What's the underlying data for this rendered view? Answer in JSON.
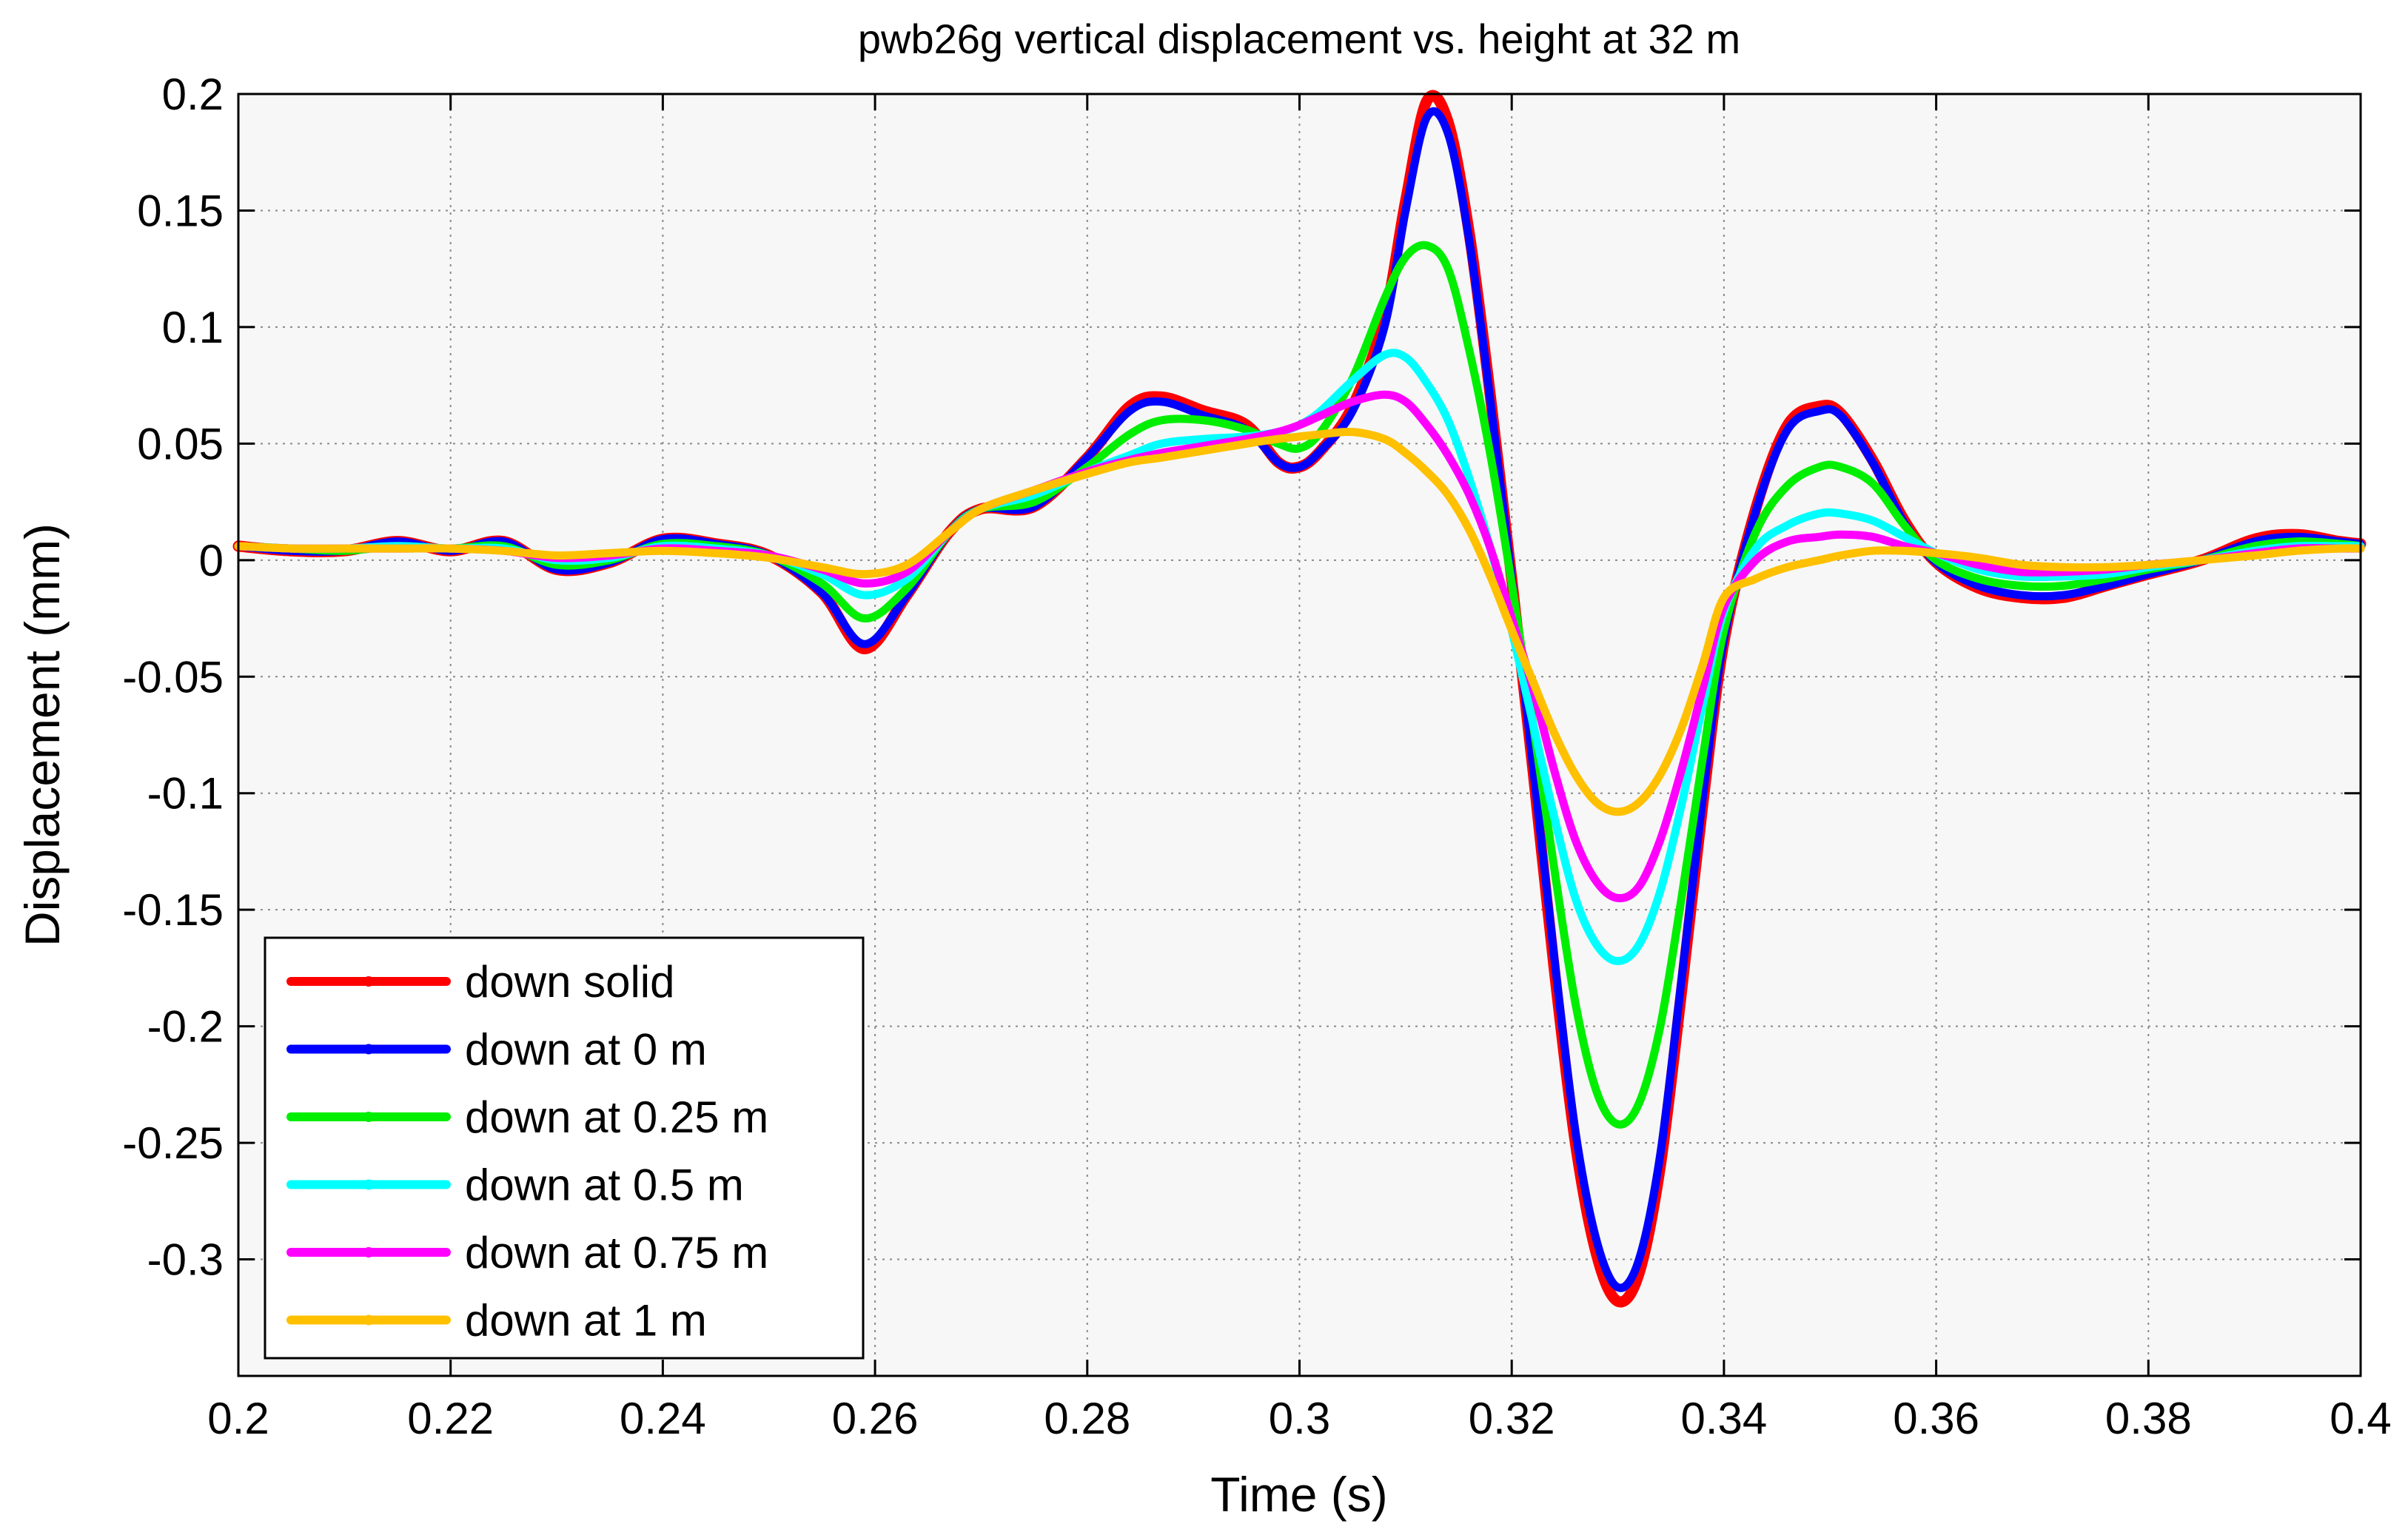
{
  "chart_data": {
    "type": "line",
    "title": "pwb26g vertical displacement vs. height at 32 m",
    "xlabel": "Time (s)",
    "ylabel": "Displacement (mm)",
    "xlim": [
      0.2,
      0.4
    ],
    "ylim": [
      -0.35,
      0.2
    ],
    "grid": true,
    "legend_position": "bottom-left",
    "background_color": "#f7f7f7",
    "x_ticks": [
      0.2,
      0.22,
      0.24,
      0.26,
      0.28,
      0.3,
      0.32,
      0.34,
      0.36,
      0.38,
      0.4
    ],
    "x_tick_labels": [
      "0.2",
      "0.22",
      "0.24",
      "0.26",
      "0.28",
      "0.3",
      "0.32",
      "0.34",
      "0.36",
      "0.38",
      "0.4"
    ],
    "y_ticks": [
      0.2,
      0.15,
      0.1,
      0.05,
      0,
      -0.05,
      -0.1,
      -0.15,
      -0.2,
      -0.25,
      -0.3
    ],
    "y_tick_labels": [
      "0.2",
      "0.15",
      "0.1",
      "0.05",
      "0",
      "-0.05",
      "-0.1",
      "-0.15",
      "-0.2",
      "-0.25",
      "-0.3"
    ],
    "x": [
      0.2,
      0.205,
      0.21,
      0.215,
      0.22,
      0.225,
      0.23,
      0.235,
      0.24,
      0.245,
      0.25,
      0.255,
      0.259,
      0.263,
      0.267,
      0.27,
      0.275,
      0.28,
      0.284,
      0.287,
      0.291,
      0.295,
      0.298,
      0.3,
      0.302,
      0.305,
      0.308,
      0.31,
      0.312,
      0.314,
      0.316,
      0.318,
      0.32,
      0.322,
      0.324,
      0.326,
      0.328,
      0.33,
      0.332,
      0.334,
      0.336,
      0.338,
      0.34,
      0.343,
      0.346,
      0.349,
      0.351,
      0.354,
      0.357,
      0.36,
      0.364,
      0.368,
      0.372,
      0.376,
      0.38,
      0.385,
      0.39,
      0.394,
      0.398,
      0.4
    ],
    "series": [
      {
        "name": "down solid",
        "color": "#ff0000",
        "values": [
          0.006,
          0.004,
          0.004,
          0.008,
          0.004,
          0.008,
          -0.004,
          -0.001,
          0.009,
          0.007,
          0.002,
          -0.014,
          -0.038,
          -0.015,
          0.012,
          0.022,
          0.023,
          0.044,
          0.066,
          0.07,
          0.064,
          0.058,
          0.042,
          0.04,
          0.047,
          0.066,
          0.104,
          0.154,
          0.197,
          0.188,
          0.14,
          0.07,
          -0.008,
          -0.09,
          -0.175,
          -0.25,
          -0.298,
          -0.318,
          -0.306,
          -0.26,
          -0.185,
          -0.105,
          -0.035,
          0.022,
          0.058,
          0.066,
          0.063,
          0.043,
          0.017,
          -0.001,
          -0.012,
          -0.016,
          -0.016,
          -0.011,
          -0.006,
          0.0,
          0.009,
          0.011,
          0.008,
          0.007
        ]
      },
      {
        "name": "down at 0 m",
        "color": "#0000ff",
        "values": [
          0.006,
          0.004,
          0.004,
          0.008,
          0.004,
          0.008,
          -0.004,
          -0.001,
          0.009,
          0.007,
          0.002,
          -0.014,
          -0.036,
          -0.015,
          0.012,
          0.022,
          0.023,
          0.044,
          0.064,
          0.068,
          0.062,
          0.056,
          0.042,
          0.04,
          0.047,
          0.064,
          0.1,
          0.15,
          0.19,
          0.183,
          0.137,
          0.068,
          -0.008,
          -0.088,
          -0.17,
          -0.245,
          -0.292,
          -0.312,
          -0.3,
          -0.255,
          -0.18,
          -0.102,
          -0.034,
          0.021,
          0.056,
          0.064,
          0.062,
          0.042,
          0.016,
          -0.001,
          -0.011,
          -0.015,
          -0.015,
          -0.011,
          -0.006,
          0.0,
          0.008,
          0.01,
          0.008,
          0.007
        ]
      },
      {
        "name": "down at 0.25 m",
        "color": "#00ee00",
        "values": [
          0.006,
          0.005,
          0.004,
          0.006,
          0.005,
          0.006,
          -0.002,
          0.0,
          0.007,
          0.006,
          0.002,
          -0.01,
          -0.025,
          -0.012,
          0.012,
          0.022,
          0.025,
          0.04,
          0.054,
          0.06,
          0.06,
          0.056,
          0.05,
          0.048,
          0.055,
          0.078,
          0.112,
          0.13,
          0.135,
          0.125,
          0.09,
          0.045,
          -0.01,
          -0.07,
          -0.132,
          -0.19,
          -0.228,
          -0.242,
          -0.233,
          -0.2,
          -0.145,
          -0.085,
          -0.03,
          0.012,
          0.032,
          0.04,
          0.04,
          0.033,
          0.015,
          0.0,
          -0.008,
          -0.011,
          -0.011,
          -0.008,
          -0.004,
          0.0,
          0.006,
          0.008,
          0.007,
          0.006
        ]
      },
      {
        "name": "down at 0.5 m",
        "color": "#00ffff",
        "values": [
          0.006,
          0.005,
          0.005,
          0.006,
          0.005,
          0.005,
          0.0,
          0.001,
          0.006,
          0.005,
          0.002,
          -0.006,
          -0.015,
          -0.008,
          0.012,
          0.022,
          0.028,
          0.038,
          0.045,
          0.05,
          0.052,
          0.053,
          0.055,
          0.058,
          0.064,
          0.077,
          0.088,
          0.087,
          0.076,
          0.06,
          0.035,
          0.005,
          -0.03,
          -0.07,
          -0.11,
          -0.145,
          -0.165,
          -0.172,
          -0.165,
          -0.142,
          -0.105,
          -0.062,
          -0.022,
          0.005,
          0.015,
          0.02,
          0.02,
          0.017,
          0.01,
          0.003,
          -0.004,
          -0.007,
          -0.007,
          -0.006,
          -0.003,
          0.0,
          0.004,
          0.006,
          0.006,
          0.006
        ]
      },
      {
        "name": "down at 0.75 m",
        "color": "#ff00ff",
        "values": [
          0.006,
          0.005,
          0.005,
          0.005,
          0.005,
          0.004,
          0.001,
          0.002,
          0.005,
          0.004,
          0.002,
          -0.004,
          -0.01,
          -0.005,
          0.012,
          0.022,
          0.03,
          0.038,
          0.043,
          0.046,
          0.049,
          0.052,
          0.055,
          0.058,
          0.062,
          0.068,
          0.071,
          0.068,
          0.058,
          0.045,
          0.028,
          0.005,
          -0.025,
          -0.055,
          -0.09,
          -0.12,
          -0.138,
          -0.145,
          -0.14,
          -0.12,
          -0.09,
          -0.055,
          -0.02,
          0.0,
          0.008,
          0.01,
          0.011,
          0.01,
          0.006,
          0.003,
          -0.002,
          -0.005,
          -0.005,
          -0.004,
          -0.002,
          0.0,
          0.003,
          0.005,
          0.005,
          0.005
        ]
      },
      {
        "name": "down at 1 m",
        "color": "#ffc000",
        "values": [
          0.006,
          0.005,
          0.005,
          0.005,
          0.005,
          0.004,
          0.002,
          0.003,
          0.004,
          0.003,
          0.001,
          -0.003,
          -0.006,
          -0.002,
          0.012,
          0.022,
          0.03,
          0.037,
          0.042,
          0.044,
          0.047,
          0.05,
          0.052,
          0.053,
          0.054,
          0.055,
          0.052,
          0.046,
          0.038,
          0.028,
          0.013,
          -0.007,
          -0.03,
          -0.052,
          -0.074,
          -0.092,
          -0.104,
          -0.108,
          -0.104,
          -0.092,
          -0.072,
          -0.045,
          -0.016,
          -0.008,
          -0.003,
          0.0,
          0.002,
          0.004,
          0.004,
          0.003,
          0.001,
          -0.002,
          -0.003,
          -0.003,
          -0.002,
          0.0,
          0.002,
          0.004,
          0.005,
          0.005
        ]
      }
    ]
  }
}
